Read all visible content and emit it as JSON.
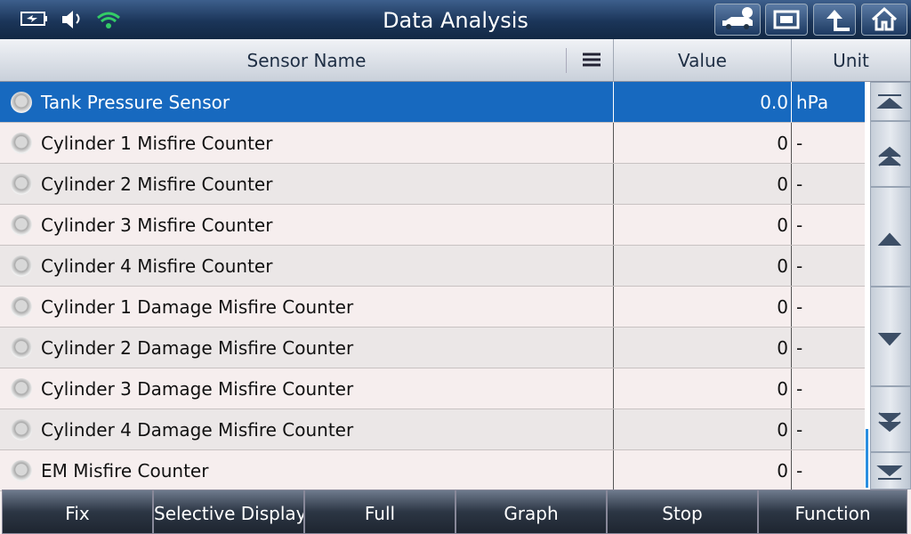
{
  "header": {
    "title": "Data Analysis"
  },
  "table": {
    "columns": [
      "Sensor Name",
      "Value",
      "Unit"
    ],
    "rows": [
      [
        "Tank Pressure Sensor",
        "0.0",
        "hPa"
      ],
      [
        "Cylinder 1 Misfire Counter",
        "0",
        "-"
      ],
      [
        "Cylinder 2 Misfire Counter",
        "0",
        "-"
      ],
      [
        "Cylinder 3 Misfire Counter",
        "0",
        "-"
      ],
      [
        "Cylinder 4 Misfire Counter",
        "0",
        "-"
      ],
      [
        "Cylinder 1 Damage Misfire Counter",
        "0",
        "-"
      ],
      [
        "Cylinder 2 Damage Misfire Counter",
        "0",
        "-"
      ],
      [
        "Cylinder 3 Damage Misfire Counter",
        "0",
        "-"
      ],
      [
        "Cylinder 4 Damage Misfire Counter",
        "0",
        "-"
      ],
      [
        "EM Misfire Counter",
        "0",
        "-"
      ]
    ],
    "selected_row": 0
  },
  "footer": {
    "buttons": [
      "Fix",
      "Selective Display",
      "Full",
      "Graph",
      "Stop",
      "Function"
    ]
  }
}
